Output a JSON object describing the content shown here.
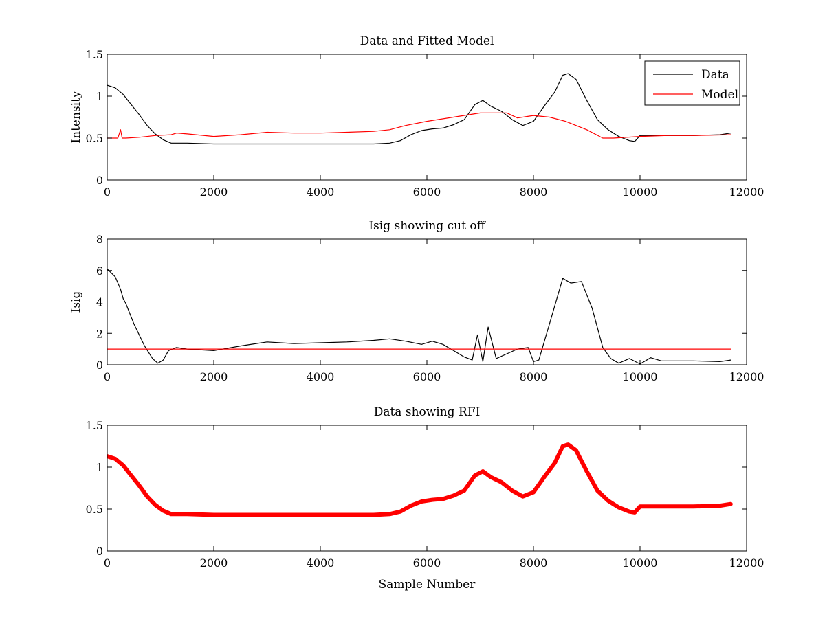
{
  "chart_data": [
    {
      "type": "line",
      "title": "Data and Fitted Model",
      "xlabel": "",
      "ylabel": "Intensity",
      "xlim": [
        0,
        12000
      ],
      "ylim": [
        0,
        1.5
      ],
      "xticks": [
        "0",
        "2000",
        "4000",
        "6000",
        "8000",
        "10000",
        "12000"
      ],
      "yticks": [
        "0",
        "0.5",
        "1",
        "1.5"
      ],
      "grid": false,
      "legend": "top-right",
      "legend_entries": [
        "Data",
        "Model"
      ],
      "series": [
        {
          "name": "Data",
          "color": "#000000",
          "x": [
            0,
            150,
            300,
            450,
            600,
            750,
            900,
            1050,
            1200,
            1500,
            2000,
            3000,
            4000,
            5000,
            5300,
            5500,
            5700,
            5900,
            6100,
            6300,
            6500,
            6700,
            6900,
            7050,
            7200,
            7400,
            7600,
            7800,
            8000,
            8200,
            8400,
            8550,
            8650,
            8800,
            9000,
            9200,
            9400,
            9600,
            9800,
            9900,
            10000,
            10200,
            10500,
            11000,
            11500,
            11700
          ],
          "y": [
            1.13,
            1.1,
            1.02,
            0.9,
            0.78,
            0.65,
            0.55,
            0.48,
            0.44,
            0.44,
            0.43,
            0.43,
            0.43,
            0.43,
            0.44,
            0.47,
            0.54,
            0.59,
            0.61,
            0.62,
            0.66,
            0.72,
            0.9,
            0.95,
            0.88,
            0.82,
            0.72,
            0.65,
            0.7,
            0.88,
            1.05,
            1.25,
            1.27,
            1.2,
            0.95,
            0.72,
            0.6,
            0.52,
            0.47,
            0.46,
            0.53,
            0.53,
            0.53,
            0.53,
            0.54,
            0.56
          ]
        },
        {
          "name": "Model",
          "color": "#ff0000",
          "x": [
            0,
            200,
            250,
            280,
            350,
            600,
            900,
            1200,
            1300,
            1500,
            2000,
            2500,
            3000,
            3500,
            4000,
            4500,
            5000,
            5300,
            5600,
            6000,
            6500,
            7000,
            7500,
            7700,
            8000,
            8300,
            8600,
            9000,
            9300,
            9500,
            10000,
            10500,
            11000,
            11700
          ],
          "y": [
            0.5,
            0.5,
            0.6,
            0.5,
            0.5,
            0.51,
            0.53,
            0.54,
            0.56,
            0.55,
            0.52,
            0.54,
            0.57,
            0.56,
            0.56,
            0.57,
            0.58,
            0.6,
            0.65,
            0.7,
            0.75,
            0.8,
            0.8,
            0.74,
            0.77,
            0.75,
            0.7,
            0.6,
            0.5,
            0.5,
            0.52,
            0.53,
            0.53,
            0.54
          ]
        }
      ]
    },
    {
      "type": "line",
      "title": "Isig showing cut off",
      "xlabel": "",
      "ylabel": "Isig",
      "xlim": [
        0,
        12000
      ],
      "ylim": [
        0,
        8
      ],
      "xticks": [
        "0",
        "2000",
        "4000",
        "6000",
        "8000",
        "10000",
        "12000"
      ],
      "yticks": [
        "0",
        "2",
        "4",
        "6",
        "8"
      ],
      "grid": false,
      "series": [
        {
          "color": "#000000",
          "x": [
            0,
            150,
            250,
            300,
            350,
            500,
            700,
            850,
            950,
            1050,
            1150,
            1300,
            1500,
            2000,
            2500,
            3000,
            3500,
            4000,
            4500,
            5000,
            5300,
            5600,
            5900,
            6100,
            6300,
            6500,
            6700,
            6850,
            6950,
            7050,
            7150,
            7300,
            7500,
            7700,
            7900,
            8000,
            8100,
            8300,
            8550,
            8700,
            8900,
            9100,
            9300,
            9450,
            9600,
            9800,
            10000,
            10200,
            10400,
            11000,
            11500,
            11700
          ],
          "y": [
            6.1,
            5.6,
            4.8,
            4.2,
            3.9,
            2.6,
            1.2,
            0.4,
            0.1,
            0.3,
            0.9,
            1.1,
            1.0,
            0.9,
            1.2,
            1.45,
            1.35,
            1.4,
            1.45,
            1.55,
            1.65,
            1.5,
            1.3,
            1.5,
            1.3,
            0.9,
            0.5,
            0.3,
            1.9,
            0.2,
            2.4,
            0.4,
            0.7,
            1.0,
            1.1,
            0.2,
            0.3,
            2.6,
            5.5,
            5.2,
            5.3,
            3.6,
            1.1,
            0.4,
            0.1,
            0.4,
            0.05,
            0.45,
            0.25,
            0.25,
            0.2,
            0.3
          ]
        },
        {
          "color": "#ff0000",
          "x": [
            0,
            11700
          ],
          "y": [
            1,
            1
          ]
        }
      ]
    },
    {
      "type": "line",
      "title": "Data showing RFI",
      "xlabel": "Sample Number",
      "ylabel": "",
      "xlim": [
        0,
        12000
      ],
      "ylim": [
        0,
        1.5
      ],
      "xticks": [
        "0",
        "2000",
        "4000",
        "6000",
        "8000",
        "10000",
        "12000"
      ],
      "yticks": [
        "0",
        "0.5",
        "1",
        "1.5"
      ],
      "grid": false,
      "series": [
        {
          "color": "#ff0000",
          "x": [
            0,
            150,
            300,
            450,
            600,
            750,
            900,
            1050,
            1200,
            1500,
            2000,
            3000,
            4000,
            5000,
            5300,
            5500,
            5700,
            5900,
            6100,
            6300,
            6500,
            6700,
            6900,
            7050,
            7200,
            7400,
            7600,
            7800,
            8000,
            8200,
            8400,
            8550,
            8650,
            8800,
            9000,
            9200,
            9400,
            9600,
            9800,
            9900,
            10000,
            10200,
            10500,
            11000,
            11500,
            11700
          ],
          "y": [
            1.13,
            1.1,
            1.02,
            0.9,
            0.78,
            0.65,
            0.55,
            0.48,
            0.44,
            0.44,
            0.43,
            0.43,
            0.43,
            0.43,
            0.44,
            0.47,
            0.54,
            0.59,
            0.61,
            0.62,
            0.66,
            0.72,
            0.9,
            0.95,
            0.88,
            0.82,
            0.72,
            0.65,
            0.7,
            0.88,
            1.05,
            1.25,
            1.27,
            1.2,
            0.95,
            0.72,
            0.6,
            0.52,
            0.47,
            0.46,
            0.53,
            0.53,
            0.53,
            0.53,
            0.54,
            0.56
          ]
        }
      ]
    }
  ]
}
